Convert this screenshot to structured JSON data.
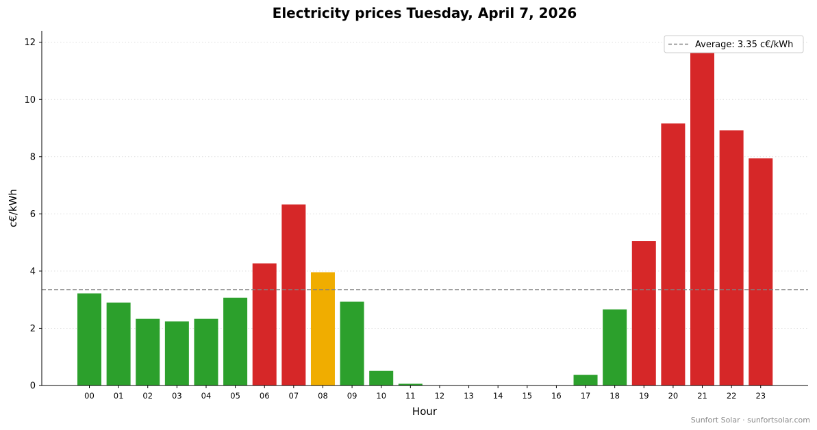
{
  "chart_data": {
    "type": "bar",
    "title": "Electricity prices Tuesday, April 7, 2026",
    "xlabel": "Hour",
    "ylabel": "c€/kWh",
    "categories": [
      "00",
      "01",
      "02",
      "03",
      "04",
      "05",
      "06",
      "07",
      "08",
      "09",
      "10",
      "11",
      "12",
      "13",
      "14",
      "15",
      "16",
      "17",
      "18",
      "19",
      "20",
      "21",
      "22",
      "23"
    ],
    "values": [
      3.22,
      2.9,
      2.33,
      2.24,
      2.33,
      3.07,
      4.27,
      6.33,
      3.96,
      2.93,
      0.51,
      0.06,
      0,
      0,
      0,
      0,
      0,
      0.37,
      2.66,
      5.05,
      9.16,
      11.76,
      8.92,
      7.94
    ],
    "bar_colors": [
      "green",
      "green",
      "green",
      "green",
      "green",
      "green",
      "red",
      "red",
      "yellow",
      "green",
      "green",
      "green",
      "green",
      "green",
      "green",
      "green",
      "green",
      "green",
      "green",
      "red",
      "red",
      "red",
      "red",
      "red"
    ],
    "yticks": [
      0,
      2,
      4,
      6,
      8,
      10,
      12
    ],
    "ylim": [
      0,
      12.4
    ],
    "grid": "y-dotted",
    "average": {
      "value": 3.35,
      "legend_label": "Average: 3.35 c€/kWh"
    },
    "legend_position": "top-right"
  },
  "colors": {
    "green": "#2ca02c",
    "red": "#d62728",
    "yellow": "#f0ad00",
    "average_line": "#808080",
    "grid": "#dddddd"
  },
  "footer": "Sunfort Solar · sunfortsolar.com"
}
